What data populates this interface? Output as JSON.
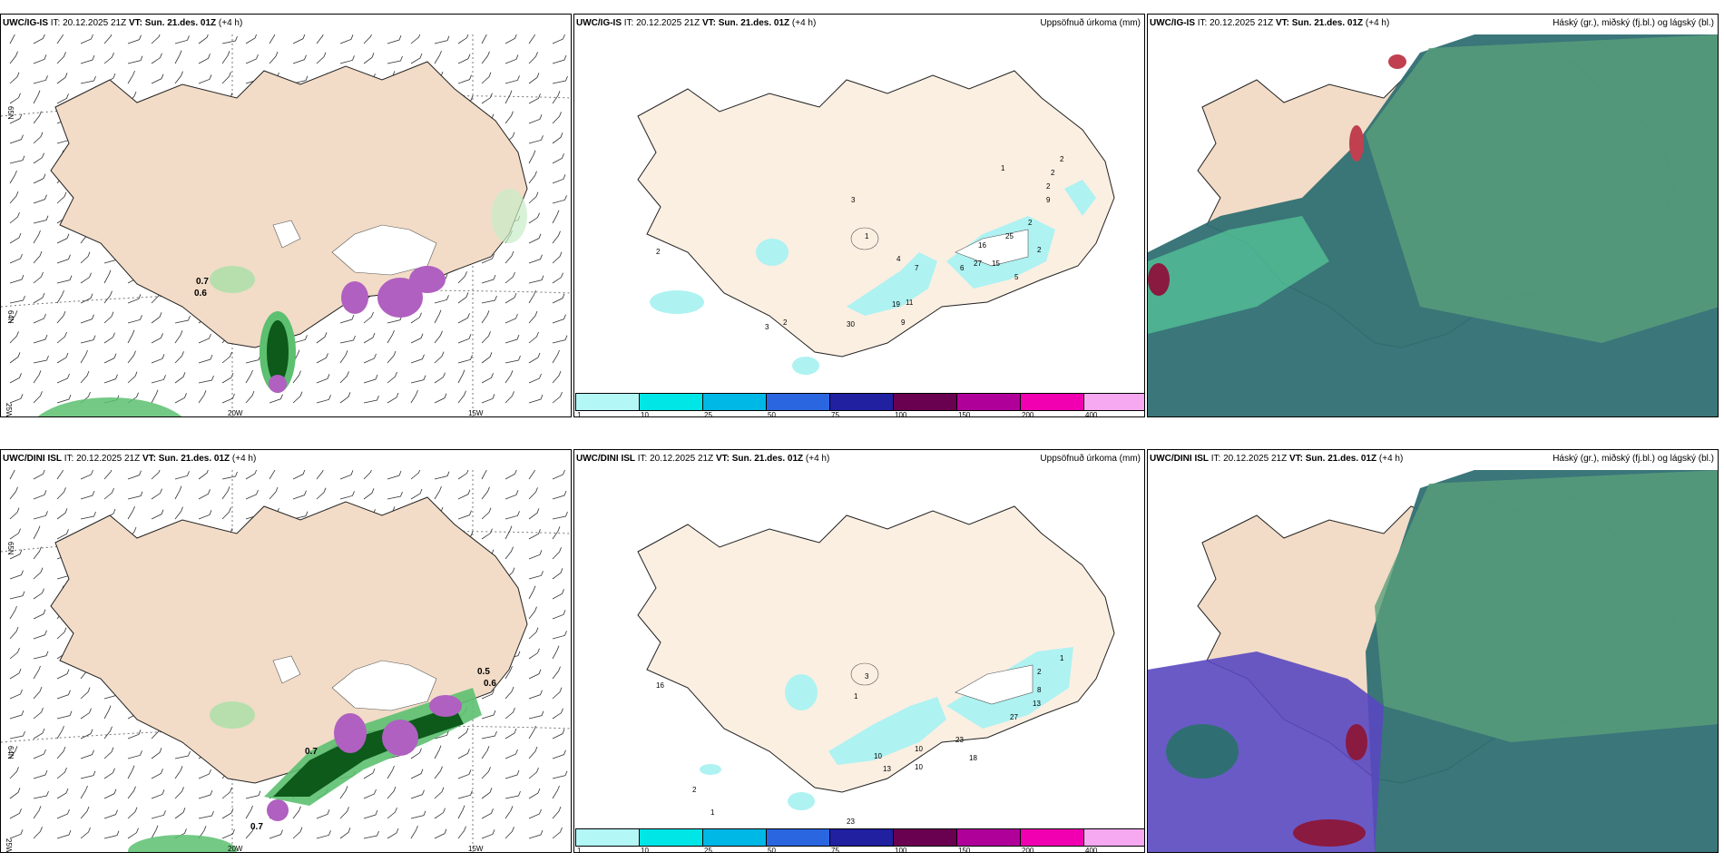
{
  "rows": [
    {
      "model": "UWC/IG-IS",
      "it_label": "IT:",
      "it_time": "20.12.2025 21Z",
      "vt_label": "VT:",
      "vt_time": "Sun. 21.des. 01Z",
      "lead": "(+4 h)",
      "wind_values": [
        "0.7",
        "0.6"
      ],
      "precip_values": [
        "1",
        "2",
        "2",
        "2",
        "2",
        "2",
        "3",
        "9",
        "5",
        "15",
        "16",
        "25",
        "6",
        "27",
        "4",
        "7",
        "19",
        "11",
        "9",
        "2",
        "3",
        "2",
        "30",
        "1"
      ],
      "axis": {
        "lat_top": "65N",
        "lat_mid": "64N",
        "lon_left": "25W",
        "lon_mid": "20W",
        "lon_right": "15W"
      }
    },
    {
      "model": "UWC/DINI ISL",
      "it_label": "IT:",
      "it_time": "20.12.2025 21Z",
      "vt_label": "VT:",
      "vt_time": "Sun. 21.des. 01Z",
      "lead": "(+4 h)",
      "wind_values": [
        "0.7",
        "0.7",
        "0.5",
        "0.6"
      ],
      "precip_values": [
        "2",
        "1",
        "8",
        "13",
        "16",
        "3",
        "1",
        "27",
        "23",
        "10",
        "10",
        "13",
        "10",
        "2",
        "1",
        "23",
        "18"
      ],
      "axis": {
        "lat_top": "65N",
        "lat_mid": "64N",
        "lon_left": "25W",
        "lon_mid": "20W",
        "lon_right": "15W"
      }
    }
  ],
  "precip_title": "Uppsöfnuð úrkoma (mm)",
  "cloud_title": "Háský (gr.), miðský (fj.bl.) og lágský (bl.)",
  "colorbar": {
    "labels": [
      "1",
      "10",
      "25",
      "50",
      "75",
      "100",
      "150",
      "200",
      "400"
    ],
    "colors": [
      "#b3f7f7",
      "#00e5e5",
      "#00b8e5",
      "#2a66e0",
      "#2020a0",
      "#6a0050",
      "#b0009a",
      "#f000b0",
      "#f6a8f0"
    ]
  },
  "colors": {
    "land": "#f2dcc7",
    "precip_land": "#fbefe2",
    "cyan": "#aef2f2",
    "green": "#55c060",
    "dark_green": "#0d5a1a",
    "purple": "#b060c0",
    "teal": "#2f6f73",
    "cloud_green": "#5aa07a",
    "blue_purple": "#5a48c0",
    "maroon": "#8a1a40"
  }
}
